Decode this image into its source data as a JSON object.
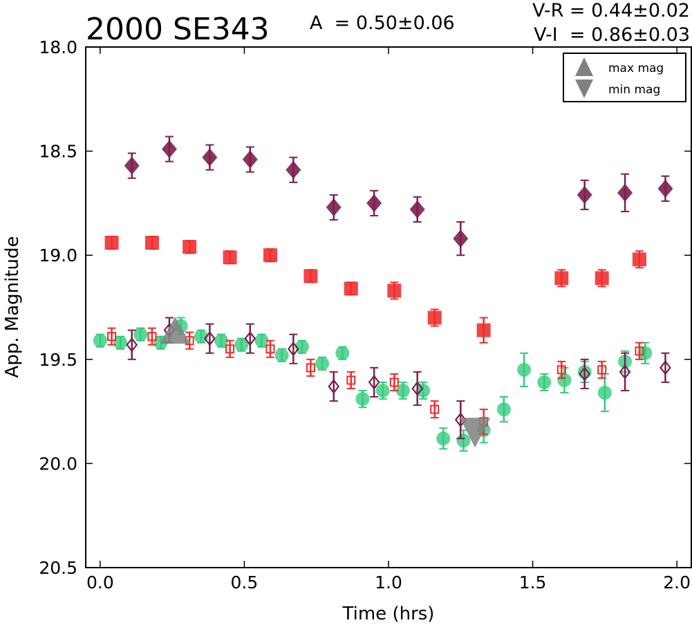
{
  "chart_data": {
    "type": "scatter",
    "title": "2000 SE343",
    "amplitude_label": "A  = 0.50±0.06",
    "color_labels": [
      "V-R = 0.44±0.02",
      "V-I  = 0.86±0.03"
    ],
    "xlabel": "Time (hrs)",
    "ylabel": "App. Magnitude",
    "xlim": [
      -0.05,
      2.05
    ],
    "ylim": [
      20.5,
      18.0
    ],
    "y_inverted": true,
    "xticks": [
      "0.0",
      "0.5",
      "1.0",
      "1.5",
      "2.0"
    ],
    "yticks": [
      "18.0",
      "18.5",
      "19.0",
      "19.5",
      "20.0",
      "20.5"
    ],
    "grid": false,
    "legend": {
      "placement": "top-right",
      "entries": [
        {
          "label": "max mag",
          "marker": "triangle-up",
          "color": "#808080"
        },
        {
          "label": "min mag",
          "marker": "triangle-down",
          "color": "#808080"
        }
      ]
    },
    "series": [
      {
        "marker": "filled-diamond",
        "color": "#7b1f4f",
        "points": [
          {
            "x": 0.11,
            "y": 18.57,
            "err": 0.06
          },
          {
            "x": 0.24,
            "y": 18.49,
            "err": 0.06
          },
          {
            "x": 0.38,
            "y": 18.53,
            "err": 0.06
          },
          {
            "x": 0.52,
            "y": 18.54,
            "err": 0.06
          },
          {
            "x": 0.67,
            "y": 18.59,
            "err": 0.06
          },
          {
            "x": 0.81,
            "y": 18.77,
            "err": 0.06
          },
          {
            "x": 0.95,
            "y": 18.75,
            "err": 0.06
          },
          {
            "x": 1.1,
            "y": 18.78,
            "err": 0.06
          },
          {
            "x": 1.25,
            "y": 18.92,
            "err": 0.08
          },
          {
            "x": 1.68,
            "y": 18.71,
            "err": 0.07
          },
          {
            "x": 1.82,
            "y": 18.7,
            "err": 0.09
          },
          {
            "x": 1.96,
            "y": 18.68,
            "err": 0.06
          }
        ]
      },
      {
        "marker": "filled-square",
        "color": "#ef2b2b",
        "points": [
          {
            "x": 0.04,
            "y": 18.94,
            "err": 0.03
          },
          {
            "x": 0.18,
            "y": 18.94,
            "err": 0.03
          },
          {
            "x": 0.31,
            "y": 18.96,
            "err": 0.03
          },
          {
            "x": 0.45,
            "y": 19.01,
            "err": 0.03
          },
          {
            "x": 0.59,
            "y": 19.0,
            "err": 0.03
          },
          {
            "x": 0.73,
            "y": 19.1,
            "err": 0.03
          },
          {
            "x": 0.87,
            "y": 19.16,
            "err": 0.03
          },
          {
            "x": 1.02,
            "y": 19.17,
            "err": 0.04
          },
          {
            "x": 1.16,
            "y": 19.3,
            "err": 0.04
          },
          {
            "x": 1.33,
            "y": 19.36,
            "err": 0.06
          },
          {
            "x": 1.6,
            "y": 19.11,
            "err": 0.04
          },
          {
            "x": 1.74,
            "y": 19.11,
            "err": 0.04
          },
          {
            "x": 1.87,
            "y": 19.02,
            "err": 0.04
          }
        ]
      },
      {
        "marker": "filled-circle",
        "color": "#2ecc7a",
        "points": [
          {
            "x": 0.0,
            "y": 19.41,
            "err": 0.03
          },
          {
            "x": 0.07,
            "y": 19.42,
            "err": 0.03
          },
          {
            "x": 0.14,
            "y": 19.38,
            "err": 0.03
          },
          {
            "x": 0.21,
            "y": 19.42,
            "err": 0.03
          },
          {
            "x": 0.28,
            "y": 19.34,
            "err": 0.04
          },
          {
            "x": 0.35,
            "y": 19.39,
            "err": 0.03
          },
          {
            "x": 0.42,
            "y": 19.41,
            "err": 0.03
          },
          {
            "x": 0.49,
            "y": 19.43,
            "err": 0.03
          },
          {
            "x": 0.56,
            "y": 19.41,
            "err": 0.03
          },
          {
            "x": 0.63,
            "y": 19.48,
            "err": 0.03
          },
          {
            "x": 0.7,
            "y": 19.44,
            "err": 0.03
          },
          {
            "x": 0.77,
            "y": 19.52,
            "err": 0.03
          },
          {
            "x": 0.84,
            "y": 19.47,
            "err": 0.03
          },
          {
            "x": 0.91,
            "y": 19.69,
            "err": 0.04
          },
          {
            "x": 0.98,
            "y": 19.65,
            "err": 0.04
          },
          {
            "x": 1.05,
            "y": 19.65,
            "err": 0.04
          },
          {
            "x": 1.12,
            "y": 19.65,
            "err": 0.04
          },
          {
            "x": 1.19,
            "y": 19.88,
            "err": 0.05
          },
          {
            "x": 1.26,
            "y": 19.89,
            "err": 0.05
          },
          {
            "x": 1.33,
            "y": 19.84,
            "err": 0.06
          },
          {
            "x": 1.4,
            "y": 19.74,
            "err": 0.06
          },
          {
            "x": 1.47,
            "y": 19.55,
            "err": 0.08
          },
          {
            "x": 1.54,
            "y": 19.61,
            "err": 0.04
          },
          {
            "x": 1.61,
            "y": 19.6,
            "err": 0.06
          },
          {
            "x": 1.68,
            "y": 19.56,
            "err": 0.05
          },
          {
            "x": 1.75,
            "y": 19.66,
            "err": 0.09
          },
          {
            "x": 1.82,
            "y": 19.51,
            "err": 0.05
          },
          {
            "x": 1.89,
            "y": 19.47,
            "err": 0.05
          }
        ]
      },
      {
        "marker": "open-square",
        "color": "#ef2b2b",
        "points": [
          {
            "x": 0.04,
            "y": 19.39,
            "err": 0.04
          },
          {
            "x": 0.18,
            "y": 19.39,
            "err": 0.04
          },
          {
            "x": 0.31,
            "y": 19.41,
            "err": 0.04
          },
          {
            "x": 0.45,
            "y": 19.45,
            "err": 0.04
          },
          {
            "x": 0.59,
            "y": 19.45,
            "err": 0.04
          },
          {
            "x": 0.73,
            "y": 19.54,
            "err": 0.04
          },
          {
            "x": 0.87,
            "y": 19.6,
            "err": 0.04
          },
          {
            "x": 1.02,
            "y": 19.61,
            "err": 0.04
          },
          {
            "x": 1.16,
            "y": 19.74,
            "err": 0.04
          },
          {
            "x": 1.33,
            "y": 19.8,
            "err": 0.06
          },
          {
            "x": 1.6,
            "y": 19.55,
            "err": 0.04
          },
          {
            "x": 1.74,
            "y": 19.55,
            "err": 0.04
          },
          {
            "x": 1.87,
            "y": 19.46,
            "err": 0.04
          }
        ]
      },
      {
        "marker": "open-diamond",
        "color": "#7b1f4f",
        "points": [
          {
            "x": 0.11,
            "y": 19.43,
            "err": 0.07
          },
          {
            "x": 0.24,
            "y": 19.36,
            "err": 0.06
          },
          {
            "x": 0.38,
            "y": 19.4,
            "err": 0.07
          },
          {
            "x": 0.52,
            "y": 19.4,
            "err": 0.07
          },
          {
            "x": 0.67,
            "y": 19.45,
            "err": 0.07
          },
          {
            "x": 0.81,
            "y": 19.63,
            "err": 0.07
          },
          {
            "x": 0.95,
            "y": 19.61,
            "err": 0.07
          },
          {
            "x": 1.1,
            "y": 19.64,
            "err": 0.08
          },
          {
            "x": 1.25,
            "y": 19.79,
            "err": 0.09
          },
          {
            "x": 1.68,
            "y": 19.57,
            "err": 0.07
          },
          {
            "x": 1.82,
            "y": 19.56,
            "err": 0.09
          },
          {
            "x": 1.96,
            "y": 19.54,
            "err": 0.07
          }
        ]
      }
    ],
    "extrema": [
      {
        "label": "max mag",
        "marker": "triangle-up",
        "x": 0.26,
        "y": 19.38,
        "color": "#808080"
      },
      {
        "label": "min mag",
        "marker": "triangle-down",
        "x": 1.3,
        "y": 19.84,
        "color": "#808080"
      }
    ]
  }
}
